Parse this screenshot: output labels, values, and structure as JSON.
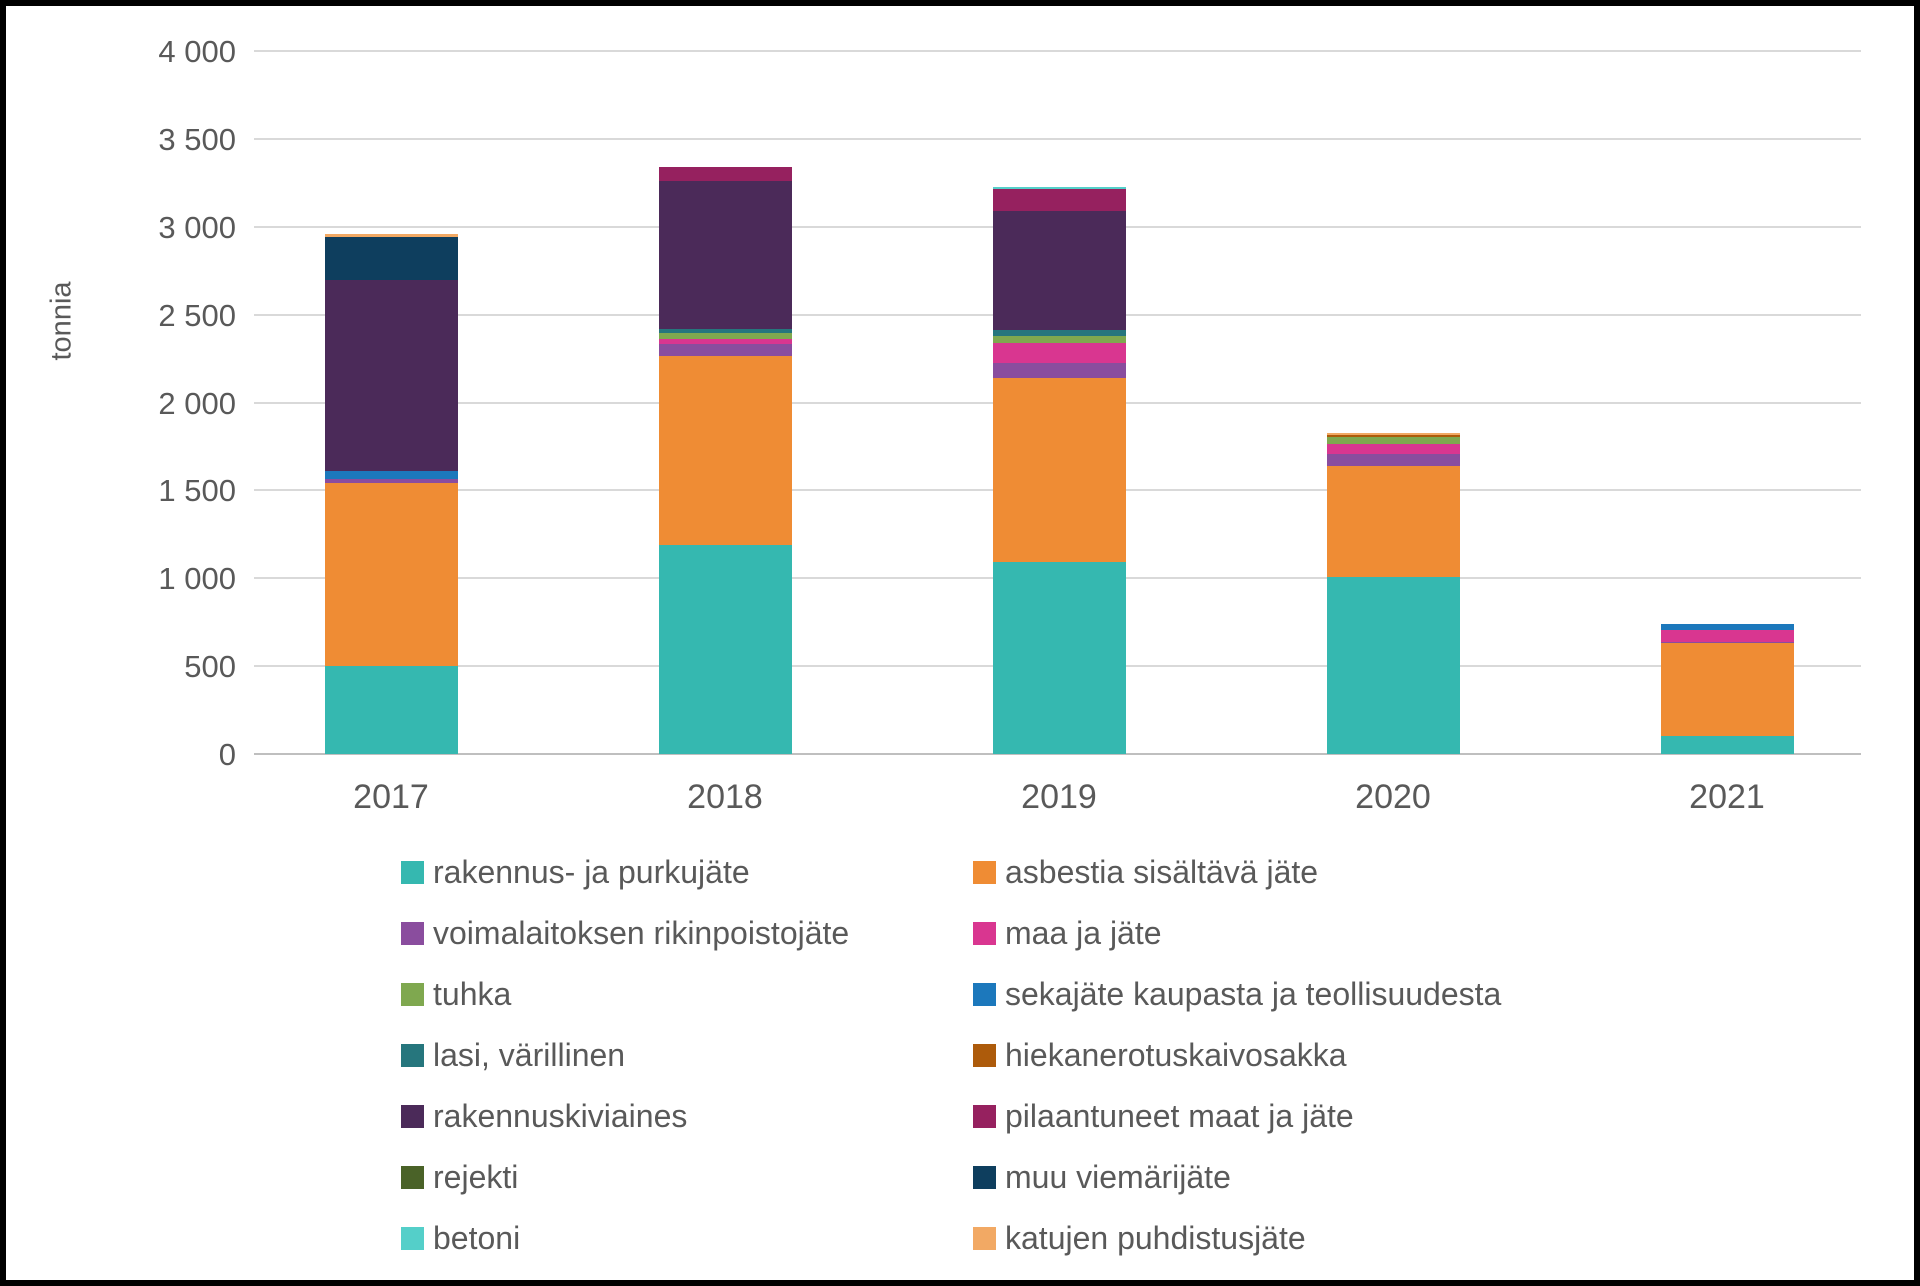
{
  "chart_data": {
    "type": "bar",
    "stacked": true,
    "ylabel": "tonnia",
    "categories": [
      "2017",
      "2018",
      "2019",
      "2020",
      "2021"
    ],
    "ylim": [
      0,
      4000
    ],
    "ytick_step": 500,
    "ytick_labels": [
      "0",
      "500",
      "1 000",
      "1 500",
      "2 000",
      "2 500",
      "3 000",
      "3 500",
      "4 000"
    ],
    "grid": true,
    "legend_position": "bottom, two columns",
    "series": [
      {
        "name": "rakennus- ja purkujäte",
        "color": "#35B8B0",
        "values": [
          500,
          1190,
          1090,
          1010,
          100
        ]
      },
      {
        "name": "asbestia sisältävä jäte",
        "color": "#EF8C34",
        "values": [
          1040,
          1075,
          1050,
          630,
          530
        ]
      },
      {
        "name": "voimalaitoksen rikinpoistojäte",
        "color": "#8A4D9E",
        "values": [
          25,
          70,
          85,
          65,
          10
        ]
      },
      {
        "name": "maa ja jäte",
        "color": "#D93690",
        "values": [
          0,
          25,
          115,
          60,
          65
        ]
      },
      {
        "name": "tuhka",
        "color": "#7FA84F",
        "values": [
          0,
          35,
          40,
          40,
          0
        ]
      },
      {
        "name": "sekajäte kaupasta ja teollisuudesta",
        "color": "#1C78BC",
        "values": [
          45,
          0,
          0,
          0,
          35
        ]
      },
      {
        "name": "lasi, värillinen",
        "color": "#26767D",
        "values": [
          0,
          25,
          30,
          0,
          0
        ]
      },
      {
        "name": "hiekanerotuskaivosakka",
        "color": "#AD5B0B",
        "values": [
          0,
          0,
          0,
          10,
          0
        ]
      },
      {
        "name": "rakennuskiviaines",
        "color": "#4B2A59",
        "values": [
          1085,
          840,
          680,
          0,
          0
        ]
      },
      {
        "name": "pilaantuneet maat ja jäte",
        "color": "#96215F",
        "values": [
          0,
          80,
          125,
          0,
          0
        ]
      },
      {
        "name": "rejekti",
        "color": "#4A6228",
        "values": [
          0,
          0,
          0,
          0,
          0
        ]
      },
      {
        "name": "muu viemärijäte",
        "color": "#0E3E5E",
        "values": [
          245,
          0,
          0,
          0,
          0
        ]
      },
      {
        "name": "betoni",
        "color": "#54CFC9",
        "values": [
          0,
          0,
          10,
          0,
          0
        ]
      },
      {
        "name": "katujen puhdistusjäte",
        "color": "#F2A964",
        "values": [
          20,
          0,
          0,
          10,
          0
        ]
      }
    ],
    "legend_order": [
      "rakennus- ja purkujäte",
      "asbestia sisältävä jäte",
      "voimalaitoksen rikinpoistojäte",
      "maa ja jäte",
      "tuhka",
      "sekajäte kaupasta ja teollisuudesta",
      "lasi, värillinen",
      "hiekanerotuskaivosakka",
      "rakennuskiviaines",
      "pilaantuneet maat ja jäte",
      "rejekti",
      "muu viemärijäte",
      "betoni",
      "katujen puhdistusjäte"
    ]
  },
  "colors": {
    "grid": "#D9D9D9",
    "axis": "#BFBFBF",
    "text": "#595959",
    "background": "#FFFFFF",
    "frame": "#000000"
  }
}
